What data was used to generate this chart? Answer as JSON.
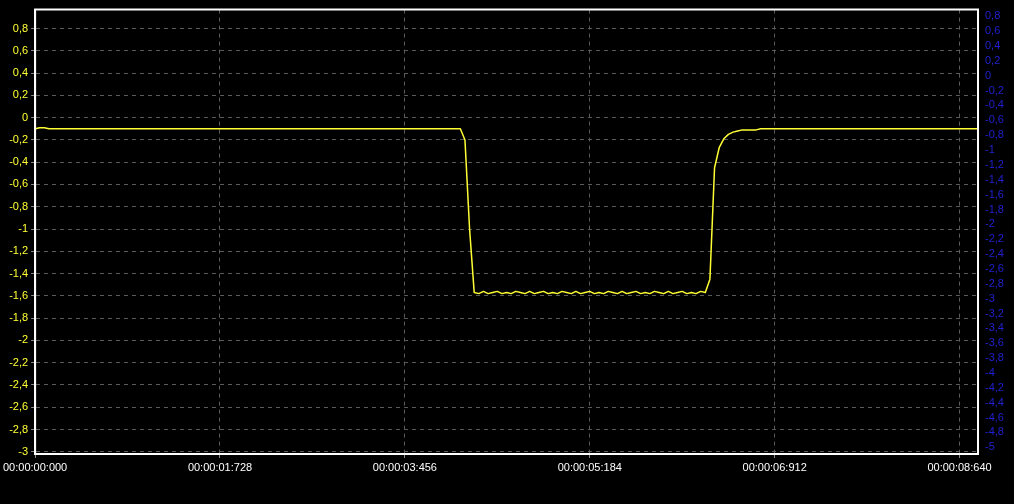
{
  "chart_data": {
    "type": "line",
    "grid": true,
    "legend": false,
    "marker": "none",
    "line_style": "solid",
    "categories": [
      "00:00:00:000",
      null,
      null,
      null,
      null,
      null,
      null,
      null,
      null,
      null,
      null,
      null,
      null,
      null,
      null,
      null,
      null,
      null,
      null,
      null,
      null,
      null,
      null,
      null,
      null,
      null,
      null,
      null,
      null,
      null,
      null,
      null,
      null,
      null,
      null,
      null,
      null,
      null,
      null,
      null,
      "00:00:01:728",
      null,
      null,
      null,
      null,
      null,
      null,
      null,
      null,
      null,
      null,
      null,
      null,
      null,
      null,
      null,
      null,
      null,
      null,
      null,
      null,
      null,
      null,
      null,
      null,
      null,
      null,
      null,
      null,
      null,
      null,
      null,
      null,
      null,
      null,
      null,
      null,
      null,
      null,
      null,
      "00:00:03:456",
      null,
      null,
      null,
      null,
      null,
      null,
      null,
      null,
      null,
      null,
      null,
      null,
      null,
      null,
      null,
      null,
      null,
      null,
      null,
      null,
      null,
      null,
      null,
      null,
      null,
      null,
      null,
      null,
      null,
      null,
      null,
      null,
      null,
      null,
      null,
      null,
      null,
      null,
      null,
      "00:00:05:184",
      null,
      null,
      null,
      null,
      null,
      null,
      null,
      null,
      null,
      null,
      null,
      null,
      null,
      null,
      null,
      null,
      null,
      null,
      null,
      null,
      null,
      null,
      null,
      null,
      null,
      null,
      null,
      null,
      null,
      null,
      null,
      null,
      null,
      null,
      null,
      null,
      null,
      null,
      null,
      "00:00:06:912",
      null,
      null,
      null,
      null,
      null,
      null,
      null,
      null,
      null,
      null,
      null,
      null,
      null,
      null,
      null,
      null,
      null,
      null,
      null,
      null,
      null,
      null,
      null,
      null,
      null,
      null,
      null,
      null,
      null,
      null,
      null,
      null,
      null,
      null,
      null,
      null,
      null,
      null,
      null,
      "00:00:08:640",
      null,
      null,
      null,
      null
    ],
    "ylim": [
      -3.02,
      0.97
    ],
    "y2lim": [
      -5.09,
      0.89
    ],
    "yticks": [
      {
        "value": 0.8,
        "label": "0,8"
      },
      {
        "value": 0.6,
        "label": "0,6"
      },
      {
        "value": 0.4,
        "label": "0,4"
      },
      {
        "value": 0.2,
        "label": "0,2"
      },
      0,
      {
        "value": -0.2,
        "label": "-0,2"
      },
      {
        "value": -0.4,
        "label": "-0,4"
      },
      {
        "value": -0.6,
        "label": "-0,6"
      },
      {
        "value": -0.8,
        "label": "-0,8"
      },
      -1,
      {
        "value": -1.2,
        "label": "-1,2"
      },
      {
        "value": -1.4,
        "label": "-1,4"
      },
      {
        "value": -1.6,
        "label": "-1,6"
      },
      {
        "value": -1.8,
        "label": "-1,8"
      },
      -2,
      {
        "value": -2.2,
        "label": "-2,2"
      },
      {
        "value": -2.4,
        "label": "-2,4"
      },
      {
        "value": -2.6,
        "label": "-2,6"
      },
      {
        "value": -2.8,
        "label": "-2,8"
      },
      -3
    ],
    "y2ticks": [
      {
        "value": 0.8,
        "label": "0,8"
      },
      {
        "value": 0.6,
        "label": "0,6"
      },
      {
        "value": 0.4,
        "label": "0,4"
      },
      {
        "value": 0.2,
        "label": "0,2"
      },
      0,
      {
        "value": -0.2,
        "label": "-0,2"
      },
      {
        "value": -0.4,
        "label": "-0,4"
      },
      {
        "value": -0.6,
        "label": "-0,6"
      },
      {
        "value": -0.8,
        "label": "-0,8"
      },
      -1,
      {
        "value": -1.2,
        "label": "-1,2"
      },
      {
        "value": -1.4,
        "label": "-1,4"
      },
      {
        "value": -1.6,
        "label": "-1,6"
      },
      {
        "value": -1.8,
        "label": "-1,8"
      },
      -2,
      {
        "value": -2.2,
        "label": "-2,2"
      },
      {
        "value": -2.4,
        "label": "-2,4"
      },
      {
        "value": -2.6,
        "label": "-2,6"
      },
      {
        "value": -2.8,
        "label": "-2,8"
      },
      -3,
      {
        "value": -3.2,
        "label": "-3,2"
      },
      {
        "value": -3.4,
        "label": "-3,4"
      },
      {
        "value": -3.6,
        "label": "-3,6"
      },
      {
        "value": -3.8,
        "label": "-3,8"
      },
      -4,
      {
        "value": -4.2,
        "label": "-4,2"
      },
      {
        "value": -4.4,
        "label": "-4,4"
      },
      {
        "value": -4.6,
        "label": "-4,6"
      },
      {
        "value": -4.8,
        "label": "-4,8"
      },
      -5
    ],
    "series": [
      {
        "color": "#ffff33",
        "values": [
          -0.1,
          -0.09,
          -0.09,
          -0.1,
          -0.1,
          -0.1,
          -0.1,
          -0.1,
          -0.1,
          -0.1,
          -0.1,
          -0.1,
          -0.1,
          -0.1,
          -0.1,
          -0.1,
          -0.1,
          -0.1,
          -0.1,
          -0.1,
          -0.1,
          -0.1,
          -0.1,
          -0.1,
          -0.1,
          -0.1,
          -0.1,
          -0.1,
          -0.1,
          -0.1,
          -0.1,
          -0.1,
          -0.1,
          -0.1,
          -0.1,
          -0.1,
          -0.1,
          -0.1,
          -0.1,
          -0.1,
          -0.1,
          -0.1,
          -0.1,
          -0.1,
          -0.1,
          -0.1,
          -0.1,
          -0.1,
          -0.1,
          -0.1,
          -0.1,
          -0.1,
          -0.1,
          -0.1,
          -0.1,
          -0.1,
          -0.1,
          -0.1,
          -0.1,
          -0.1,
          -0.1,
          -0.1,
          -0.1,
          -0.1,
          -0.1,
          -0.1,
          -0.1,
          -0.1,
          -0.1,
          -0.1,
          -0.1,
          -0.1,
          -0.1,
          -0.1,
          -0.1,
          -0.1,
          -0.1,
          -0.1,
          -0.1,
          -0.1,
          -0.1,
          -0.1,
          -0.1,
          -0.1,
          -0.1,
          -0.1,
          -0.1,
          -0.1,
          -0.1,
          -0.1,
          -0.1,
          -0.1,
          -0.1,
          -0.2,
          -1.0,
          -1.57,
          -1.58,
          -1.56,
          -1.58,
          -1.57,
          -1.56,
          -1.58,
          -1.57,
          -1.58,
          -1.56,
          -1.57,
          -1.58,
          -1.56,
          -1.58,
          -1.57,
          -1.56,
          -1.58,
          -1.57,
          -1.58,
          -1.56,
          -1.57,
          -1.58,
          -1.56,
          -1.58,
          -1.57,
          -1.56,
          -1.58,
          -1.57,
          -1.58,
          -1.56,
          -1.57,
          -1.58,
          -1.56,
          -1.58,
          -1.57,
          -1.56,
          -1.58,
          -1.57,
          -1.58,
          -1.56,
          -1.57,
          -1.58,
          -1.56,
          -1.58,
          -1.57,
          -1.56,
          -1.58,
          -1.57,
          -1.58,
          -1.56,
          -1.57,
          -1.45,
          -0.45,
          -0.27,
          -0.19,
          -0.15,
          -0.13,
          -0.12,
          -0.11,
          -0.11,
          -0.11,
          -0.11,
          -0.1,
          -0.1,
          -0.1,
          -0.1,
          -0.1,
          -0.1,
          -0.1,
          -0.1,
          -0.1,
          -0.1,
          -0.1,
          -0.1,
          -0.1,
          -0.1,
          -0.1,
          -0.1,
          -0.1,
          -0.1,
          -0.1,
          -0.1,
          -0.1,
          -0.1,
          -0.1,
          -0.1,
          -0.1,
          -0.1,
          -0.1,
          -0.1,
          -0.1,
          -0.1,
          -0.1,
          -0.1,
          -0.1,
          -0.1,
          -0.1,
          -0.1,
          -0.1,
          -0.1,
          -0.1,
          -0.1,
          -0.1,
          -0.1,
          -0.1,
          -0.1,
          -0.1,
          -0.1,
          -0.1,
          -0.1
        ]
      }
    ]
  }
}
